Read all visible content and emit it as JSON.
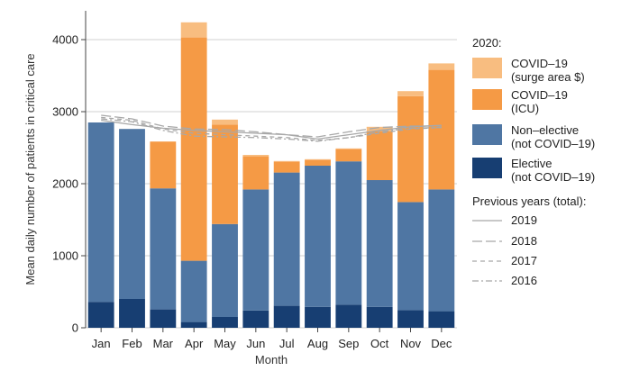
{
  "chart_data": {
    "type": "bar",
    "stacked": true,
    "categories": [
      "Jan",
      "Feb",
      "Mar",
      "Apr",
      "May",
      "Jun",
      "Jul",
      "Aug",
      "Sep",
      "Oct",
      "Nov",
      "Dec"
    ],
    "xlabel": "Month",
    "ylabel": "Mean daily number of patients in critical care",
    "ylim": [
      0,
      4400
    ],
    "yticks": [
      0,
      1000,
      2000,
      3000,
      4000
    ],
    "ytick_labels": [
      "0",
      "1000",
      "2000",
      "3000",
      "4000"
    ],
    "grid": true,
    "legend_position": "right",
    "legend_title_current": "2020:",
    "legend_title_previous": "Previous years (total):",
    "series": [
      {
        "name": "Elective",
        "label_lines": [
          "Elective",
          "(not COVID–19)"
        ],
        "color": "#173e72",
        "values": [
          360,
          400,
          255,
          80,
          150,
          240,
          305,
          290,
          320,
          290,
          245,
          230
        ]
      },
      {
        "name": "Non-elective",
        "label_lines": [
          "Non–elective",
          "(not COVID–19)"
        ],
        "color": "#4f76a3",
        "values": [
          2490,
          2360,
          1680,
          850,
          1290,
          1680,
          1850,
          1960,
          1990,
          1760,
          1500,
          1690
        ]
      },
      {
        "name": "COVID-19 (ICU)",
        "label_lines": [
          "COVID–19",
          "(ICU)"
        ],
        "color": "#f59a45",
        "values": [
          0,
          0,
          650,
          3100,
          1380,
          460,
          150,
          80,
          170,
          680,
          1470,
          1660
        ]
      },
      {
        "name": "COVID-19 (surge area $)",
        "label_lines": [
          "COVID–19",
          "(surge area $)"
        ],
        "color": "#f8bd80",
        "values": [
          0,
          0,
          0,
          210,
          70,
          20,
          10,
          10,
          10,
          60,
          70,
          90
        ]
      }
    ],
    "previous_years": [
      {
        "name": "2019",
        "style": "solid",
        "values": [
          2880,
          2820,
          2770,
          2740,
          2720,
          2700,
          2680,
          2620,
          2680,
          2740,
          2790,
          2810
        ]
      },
      {
        "name": "2018",
        "style": "longdash",
        "values": [
          2950,
          2900,
          2800,
          2760,
          2750,
          2720,
          2680,
          2650,
          2720,
          2780,
          2800,
          2800
        ]
      },
      {
        "name": "2017",
        "style": "dash",
        "values": [
          2920,
          2880,
          2760,
          2700,
          2680,
          2660,
          2640,
          2600,
          2640,
          2700,
          2760,
          2780
        ]
      },
      {
        "name": "2016",
        "style": "dashdot",
        "values": [
          2900,
          2860,
          2740,
          2660,
          2650,
          2640,
          2620,
          2590,
          2640,
          2720,
          2770,
          2780
        ]
      }
    ]
  }
}
